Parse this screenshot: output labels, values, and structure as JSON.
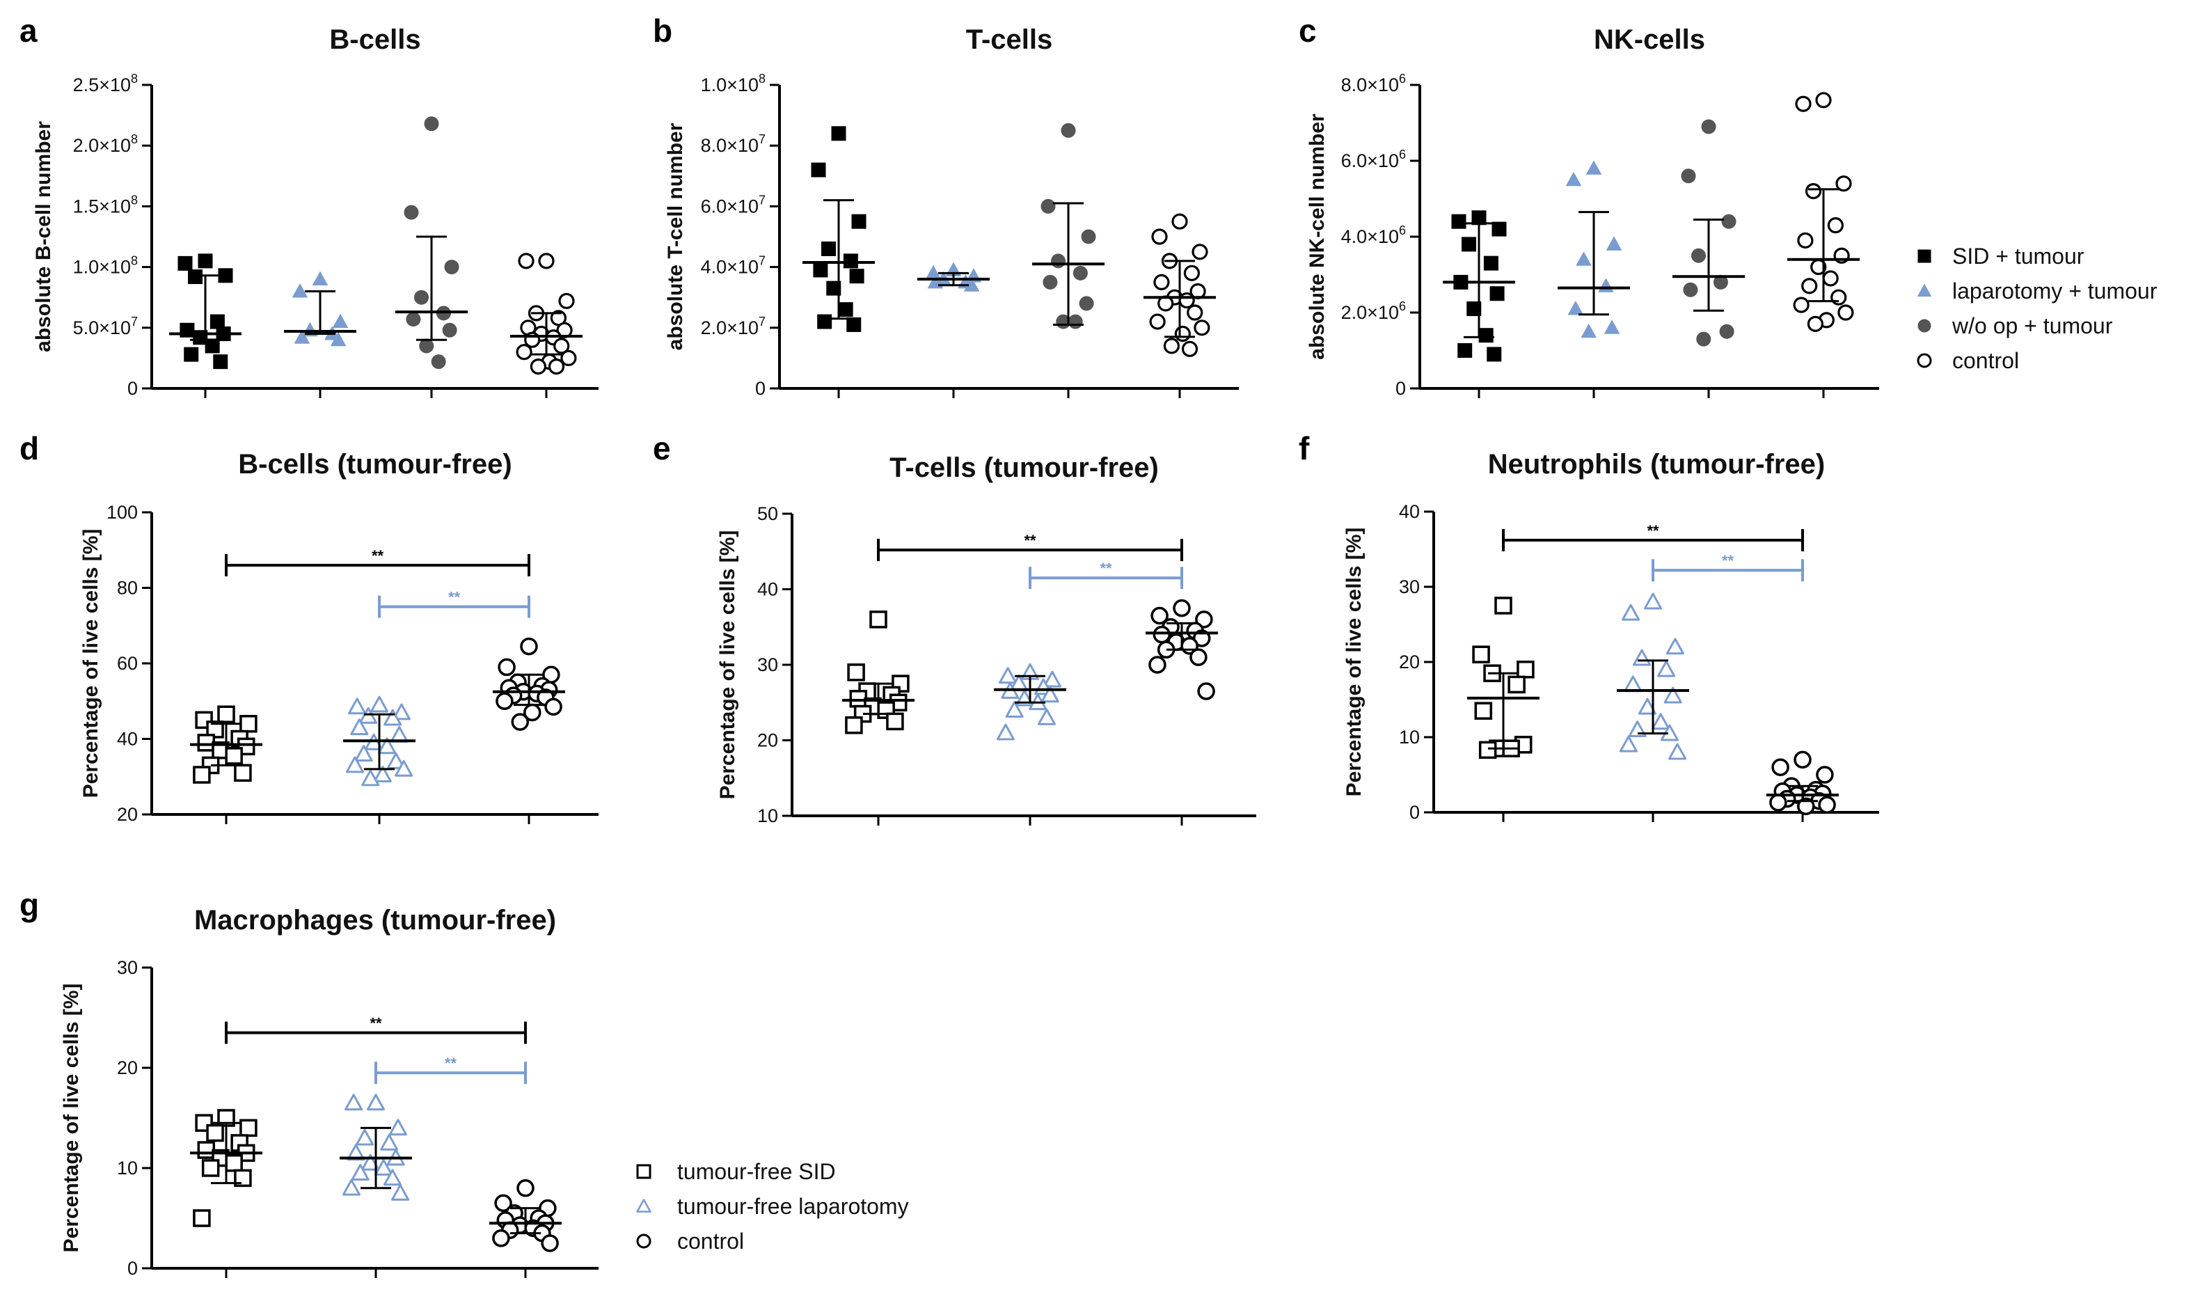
{
  "colors": {
    "black": "#000000",
    "blue": "#7a9cd0",
    "grey": "#555555"
  },
  "legends": [
    {
      "name": "legend-abs",
      "entries": [
        {
          "label": "SID + tumour",
          "marker": "square-filled",
          "color": "#000000"
        },
        {
          "label": "laparotomy + tumour",
          "marker": "triangle-filled",
          "color": "#7a9cd0"
        },
        {
          "label": "w/o op + tumour",
          "marker": "circle-filled",
          "color": "#555555"
        },
        {
          "label": "control",
          "marker": "circle-open",
          "color": "#000000"
        }
      ]
    },
    {
      "name": "legend-pct",
      "entries": [
        {
          "label": "tumour-free SID",
          "marker": "square-open",
          "color": "#000000"
        },
        {
          "label": "tumour-free laparotomy",
          "marker": "triangle-open",
          "color": "#7a9cd0"
        },
        {
          "label": "control",
          "marker": "circle-open",
          "color": "#000000"
        }
      ]
    }
  ],
  "chart_data": [
    {
      "letter": "a",
      "title": "B-cells",
      "type": "scatter",
      "ylabel": "absolute B-cell number",
      "ylim": [
        0,
        2.5
      ],
      "yticks": [
        {
          "value": 0,
          "mant": "0",
          "exp": ""
        },
        {
          "value": 0.5,
          "mant": "5.0×10",
          "exp": "7"
        },
        {
          "value": 1.0,
          "mant": "1.0×10",
          "exp": "8"
        },
        {
          "value": 1.5,
          "mant": "1.5×10",
          "exp": "8"
        },
        {
          "value": 2.0,
          "mant": "2.0×10",
          "exp": "8"
        },
        {
          "value": 2.5,
          "mant": "2.5×10",
          "exp": "8"
        }
      ],
      "value_unit": "1e8 cells",
      "groups": [
        {
          "name": "SID + tumour",
          "marker": "square-filled",
          "color": "#000000",
          "median": 0.45,
          "iqr": [
            0.4,
            0.93
          ],
          "points": [
            1.05,
            1.03,
            0.93,
            0.92,
            0.55,
            0.48,
            0.45,
            0.42,
            0.35,
            0.28,
            0.22
          ]
        },
        {
          "name": "laparotomy + tumour",
          "marker": "triangle-filled",
          "color": "#7a9cd0",
          "median": 0.47,
          "iqr": [
            0.45,
            0.8
          ],
          "points": [
            0.9,
            0.8,
            0.55,
            0.48,
            0.45,
            0.42,
            0.4
          ]
        },
        {
          "name": "w/o op + tumour",
          "marker": "circle-filled",
          "color": "#555555",
          "median": 0.63,
          "iqr": [
            0.4,
            1.25
          ],
          "points": [
            2.18,
            1.45,
            1.0,
            0.75,
            0.62,
            0.57,
            0.48,
            0.35,
            0.22
          ]
        },
        {
          "name": "control",
          "marker": "circle-open",
          "color": "#000000",
          "median": 0.43,
          "iqr": [
            0.28,
            0.62
          ],
          "points": [
            1.05,
            1.05,
            0.72,
            0.62,
            0.58,
            0.5,
            0.48,
            0.45,
            0.42,
            0.4,
            0.35,
            0.3,
            0.25,
            0.22,
            0.18,
            0.18
          ]
        }
      ],
      "significance": []
    },
    {
      "letter": "b",
      "title": "T-cells",
      "type": "scatter",
      "ylabel": "absolute T-cell number",
      "ylim": [
        0,
        1.0
      ],
      "yticks": [
        {
          "value": 0,
          "mant": "0",
          "exp": ""
        },
        {
          "value": 0.2,
          "mant": "2.0×10",
          "exp": "7"
        },
        {
          "value": 0.4,
          "mant": "4.0×10",
          "exp": "7"
        },
        {
          "value": 0.6,
          "mant": "6.0×10",
          "exp": "7"
        },
        {
          "value": 0.8,
          "mant": "8.0×10",
          "exp": "7"
        },
        {
          "value": 1.0,
          "mant": "1.0×10",
          "exp": "8"
        }
      ],
      "value_unit": "1e8 cells",
      "groups": [
        {
          "name": "SID + tumour",
          "marker": "square-filled",
          "color": "#000000",
          "median": 0.415,
          "iqr": [
            0.23,
            0.62
          ],
          "points": [
            0.84,
            0.72,
            0.55,
            0.46,
            0.42,
            0.39,
            0.37,
            0.33,
            0.26,
            0.22,
            0.21
          ]
        },
        {
          "name": "laparotomy + tumour",
          "marker": "triangle-filled",
          "color": "#7a9cd0",
          "median": 0.36,
          "iqr": [
            0.34,
            0.38
          ],
          "points": [
            0.39,
            0.38,
            0.37,
            0.36,
            0.35,
            0.35,
            0.34
          ]
        },
        {
          "name": "w/o op + tumour",
          "marker": "circle-filled",
          "color": "#555555",
          "median": 0.41,
          "iqr": [
            0.21,
            0.61
          ],
          "points": [
            0.85,
            0.6,
            0.5,
            0.42,
            0.38,
            0.35,
            0.28,
            0.22,
            0.22
          ]
        },
        {
          "name": "control",
          "marker": "circle-open",
          "color": "#000000",
          "median": 0.3,
          "iqr": [
            0.17,
            0.42
          ],
          "points": [
            0.55,
            0.5,
            0.45,
            0.42,
            0.38,
            0.35,
            0.32,
            0.3,
            0.29,
            0.28,
            0.25,
            0.22,
            0.2,
            0.18,
            0.14,
            0.13
          ]
        }
      ],
      "significance": []
    },
    {
      "letter": "c",
      "title": "NK-cells",
      "type": "scatter",
      "ylabel": "absolute NK-cell number",
      "ylim": [
        0,
        8.0
      ],
      "yticks": [
        {
          "value": 0,
          "mant": "0",
          "exp": ""
        },
        {
          "value": 2.0,
          "mant": "2.0×10",
          "exp": "6"
        },
        {
          "value": 4.0,
          "mant": "4.0×10",
          "exp": "6"
        },
        {
          "value": 6.0,
          "mant": "6.0×10",
          "exp": "6"
        },
        {
          "value": 8.0,
          "mant": "8.0×10",
          "exp": "6"
        }
      ],
      "value_unit": "1e6 cells",
      "groups": [
        {
          "name": "SID + tumour",
          "marker": "square-filled",
          "color": "#000000",
          "median": 2.8,
          "iqr": [
            1.35,
            4.35
          ],
          "points": [
            4.5,
            4.4,
            4.2,
            3.8,
            3.3,
            2.8,
            2.5,
            2.1,
            1.4,
            1.0,
            0.9
          ]
        },
        {
          "name": "laparotomy + tumour",
          "marker": "triangle-filled",
          "color": "#7a9cd0",
          "median": 2.65,
          "iqr": [
            1.95,
            4.65
          ],
          "points": [
            5.8,
            5.5,
            3.8,
            3.4,
            2.7,
            2.1,
            1.6,
            1.5
          ]
        },
        {
          "name": "w/o op + tumour",
          "marker": "circle-filled",
          "color": "#555555",
          "median": 2.95,
          "iqr": [
            2.05,
            4.45
          ],
          "points": [
            6.9,
            5.6,
            4.4,
            3.5,
            2.8,
            2.6,
            1.5,
            1.3
          ]
        },
        {
          "name": "control",
          "marker": "circle-open",
          "color": "#000000",
          "median": 3.4,
          "iqr": [
            2.3,
            5.25
          ],
          "points": [
            7.6,
            7.5,
            5.4,
            5.2,
            4.3,
            3.9,
            3.5,
            3.2,
            2.9,
            2.7,
            2.4,
            2.2,
            2.0,
            1.8,
            1.7
          ]
        }
      ],
      "significance": []
    },
    {
      "letter": "d",
      "title": "B-cells (tumour-free)",
      "type": "scatter",
      "ylabel": "Percentage of live cells [%]",
      "ylim": [
        20,
        100
      ],
      "yticks": [
        {
          "value": 20,
          "mant": "20",
          "exp": ""
        },
        {
          "value": 40,
          "mant": "40",
          "exp": ""
        },
        {
          "value": 60,
          "mant": "60",
          "exp": ""
        },
        {
          "value": 80,
          "mant": "80",
          "exp": ""
        },
        {
          "value": 100,
          "mant": "100",
          "exp": ""
        }
      ],
      "groups": [
        {
          "name": "tumour-free SID",
          "marker": "square-open",
          "color": "#000000",
          "median": 38.5,
          "iqr": [
            33,
            44
          ],
          "points": [
            46.5,
            45,
            44,
            42.5,
            40,
            39,
            38,
            37,
            35.5,
            33,
            31,
            30.5
          ]
        },
        {
          "name": "tumour-free laparotomy",
          "marker": "triangle-open",
          "color": "#7a9cd0",
          "median": 39.5,
          "iqr": [
            32,
            46.5
          ],
          "points": [
            49,
            48.5,
            47,
            46,
            45.5,
            43,
            41,
            39,
            38,
            36,
            34,
            33,
            32,
            30.5,
            29.5
          ]
        },
        {
          "name": "control",
          "marker": "circle-open",
          "color": "#000000",
          "median": 52.5,
          "iqr": [
            49,
            57
          ],
          "points": [
            64.5,
            59,
            57,
            55,
            54,
            53.5,
            53,
            52.5,
            52,
            51.5,
            51,
            50,
            48.5,
            47,
            44.5
          ]
        }
      ],
      "significance": [
        {
          "from": 0,
          "to": 2,
          "y": 86,
          "label": "**",
          "color": "#000000"
        },
        {
          "from": 1,
          "to": 2,
          "y": 75,
          "label": "**",
          "color": "#7a9cd0"
        }
      ]
    },
    {
      "letter": "e",
      "title": "T-cells (tumour-free)",
      "type": "scatter",
      "ylabel": "Percentage of live cells [%]",
      "ylim": [
        10,
        50
      ],
      "yticks": [
        {
          "value": 10,
          "mant": "10",
          "exp": ""
        },
        {
          "value": 20,
          "mant": "20",
          "exp": ""
        },
        {
          "value": 30,
          "mant": "30",
          "exp": ""
        },
        {
          "value": 40,
          "mant": "40",
          "exp": ""
        },
        {
          "value": 50,
          "mant": "50",
          "exp": ""
        }
      ],
      "groups": [
        {
          "name": "tumour-free SID",
          "marker": "square-open",
          "color": "#000000",
          "median": 25.3,
          "iqr": [
            23.5,
            27.5
          ],
          "points": [
            36,
            29,
            27.5,
            26.5,
            26,
            25.5,
            25,
            24.5,
            24,
            23.5,
            22.5,
            22
          ]
        },
        {
          "name": "tumour-free laparotomy",
          "marker": "triangle-open",
          "color": "#7a9cd0",
          "median": 26.7,
          "iqr": [
            25,
            28.5
          ],
          "points": [
            29,
            28.5,
            28,
            27.5,
            27,
            26.5,
            26,
            25.5,
            25,
            24,
            23,
            21
          ]
        },
        {
          "name": "control",
          "marker": "circle-open",
          "color": "#000000",
          "median": 34.2,
          "iqr": [
            32,
            35.5
          ],
          "points": [
            37.5,
            36.5,
            36,
            35,
            34.5,
            34,
            33.5,
            33,
            32.5,
            32,
            31,
            30,
            26.5
          ]
        }
      ],
      "significance": [
        {
          "from": 0,
          "to": 2,
          "y": 45.2,
          "label": "**",
          "color": "#000000"
        },
        {
          "from": 1,
          "to": 2,
          "y": 41.5,
          "label": "**",
          "color": "#7a9cd0"
        }
      ]
    },
    {
      "letter": "f",
      "title": "Neutrophils (tumour-free)",
      "type": "scatter",
      "ylabel": "Percentage of live cells [%]",
      "ylim": [
        0,
        40
      ],
      "yticks": [
        {
          "value": 0,
          "mant": "0",
          "exp": ""
        },
        {
          "value": 10,
          "mant": "10",
          "exp": ""
        },
        {
          "value": 20,
          "mant": "20",
          "exp": ""
        },
        {
          "value": 30,
          "mant": "30",
          "exp": ""
        },
        {
          "value": 40,
          "mant": "40",
          "exp": ""
        }
      ],
      "groups": [
        {
          "name": "tumour-free SID",
          "marker": "square-open",
          "color": "#000000",
          "median": 15.2,
          "iqr": [
            8.5,
            18.5
          ],
          "points": [
            27.5,
            21,
            19,
            18.5,
            17,
            13.5,
            9,
            8.5,
            8.5,
            8.3
          ]
        },
        {
          "name": "tumour-free laparotomy",
          "marker": "triangle-open",
          "color": "#7a9cd0",
          "median": 16.2,
          "iqr": [
            10.5,
            20.2
          ],
          "points": [
            28,
            26.5,
            22,
            20.5,
            19,
            17,
            15.5,
            14,
            12,
            11,
            10.5,
            9,
            8
          ]
        },
        {
          "name": "control",
          "marker": "circle-open",
          "color": "#000000",
          "median": 2.3,
          "iqr": [
            1.5,
            3.5
          ],
          "points": [
            7,
            6,
            5,
            3.5,
            3,
            2.8,
            2.5,
            2.3,
            2,
            1.8,
            1.5,
            1.3,
            1,
            0.8
          ]
        }
      ],
      "significance": [
        {
          "from": 0,
          "to": 2,
          "y": 36.2,
          "label": "**",
          "color": "#000000"
        },
        {
          "from": 1,
          "to": 2,
          "y": 32.2,
          "label": "**",
          "color": "#7a9cd0"
        }
      ]
    },
    {
      "letter": "g",
      "title": "Macrophages (tumour-free)",
      "type": "scatter",
      "ylabel": "Percentage of live cells [%]",
      "ylim": [
        0,
        30
      ],
      "yticks": [
        {
          "value": 0,
          "mant": "0",
          "exp": ""
        },
        {
          "value": 10,
          "mant": "10",
          "exp": ""
        },
        {
          "value": 20,
          "mant": "20",
          "exp": ""
        },
        {
          "value": 30,
          "mant": "30",
          "exp": ""
        }
      ],
      "groups": [
        {
          "name": "tumour-free SID",
          "marker": "square-open",
          "color": "#000000",
          "median": 11.5,
          "iqr": [
            8.5,
            14.5
          ],
          "points": [
            15,
            14.5,
            14,
            13.5,
            12.5,
            11.8,
            11.5,
            11,
            10.5,
            10,
            9,
            5
          ]
        },
        {
          "name": "tumour-free laparotomy",
          "marker": "triangle-open",
          "color": "#7a9cd0",
          "median": 11,
          "iqr": [
            8,
            14
          ],
          "points": [
            16.5,
            16.5,
            14,
            13,
            12.5,
            11.5,
            11,
            10.5,
            10,
            9.5,
            9,
            8,
            7.5
          ]
        },
        {
          "name": "control",
          "marker": "circle-open",
          "color": "#000000",
          "median": 4.5,
          "iqr": [
            3.5,
            6
          ],
          "points": [
            8,
            6.5,
            6,
            5.5,
            5,
            4.8,
            4.5,
            4.3,
            4,
            3.8,
            3.5,
            3,
            2.5
          ]
        }
      ],
      "significance": [
        {
          "from": 0,
          "to": 2,
          "y": 23.5,
          "label": "**",
          "color": "#000000"
        },
        {
          "from": 1,
          "to": 2,
          "y": 19.5,
          "label": "**",
          "color": "#7a9cd0"
        }
      ]
    }
  ]
}
